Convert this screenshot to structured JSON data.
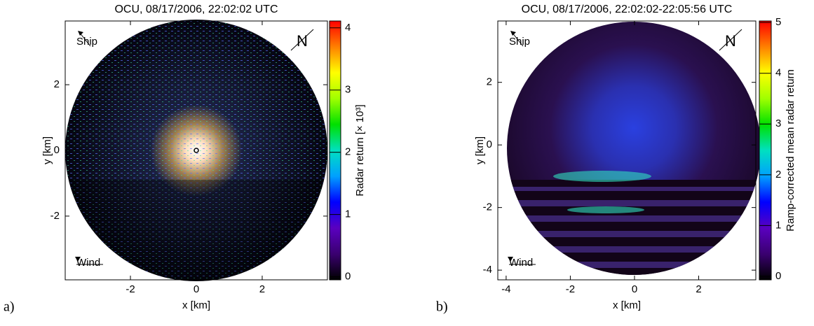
{
  "chart_data": [
    {
      "type": "image",
      "title": "OCU, 08/17/2006, 22:02:02 UTC",
      "x_label": "x [km]",
      "y_label": "y [km]",
      "xlim": [
        -3.98,
        3.98
      ],
      "ylim": [
        -3.94,
        3.94
      ],
      "xticks": [
        -2,
        0,
        2
      ],
      "yticks": [
        -2,
        0,
        2
      ],
      "colorbar": {
        "label": "Radar return [× 10³]",
        "lim": [
          -0.05,
          4.11
        ],
        "ticks": [
          0,
          1,
          2,
          3,
          4
        ],
        "colors": [
          "#000000",
          "#3a0070",
          "#5a00c0",
          "#0000ff",
          "#00a0ff",
          "#00e0c0",
          "#00e000",
          "#a0ff00",
          "#ffff00",
          "#ff8000",
          "#ff0000"
        ]
      },
      "annotations": [
        "Ship",
        "Wind",
        "N"
      ],
      "panel_label": "a)"
    },
    {
      "type": "image",
      "title": "OCU, 08/17/2006, 22:02:02-22:05:56 UTC",
      "x_label": "x [km]",
      "y_label": "y [km]",
      "xlim": [
        -4.26,
        3.78
      ],
      "ylim": [
        -4.31,
        3.96
      ],
      "xticks": [
        -4,
        -2,
        0,
        2
      ],
      "yticks": [
        -4,
        -2,
        0,
        2
      ],
      "colorbar": {
        "label": "Ramp-corrected mean radar return",
        "lim": [
          -0.07,
          5.03
        ],
        "ticks": [
          0,
          1,
          2,
          3,
          4,
          5
        ],
        "colors": [
          "#000000",
          "#3a0070",
          "#5a00c0",
          "#0000ff",
          "#00a0ff",
          "#00e0c0",
          "#00e000",
          "#a0ff00",
          "#ffff00",
          "#ff8000",
          "#ff0000"
        ]
      },
      "annotations": [
        "Ship",
        "Wind",
        "N"
      ],
      "panel_label": "b)"
    }
  ]
}
